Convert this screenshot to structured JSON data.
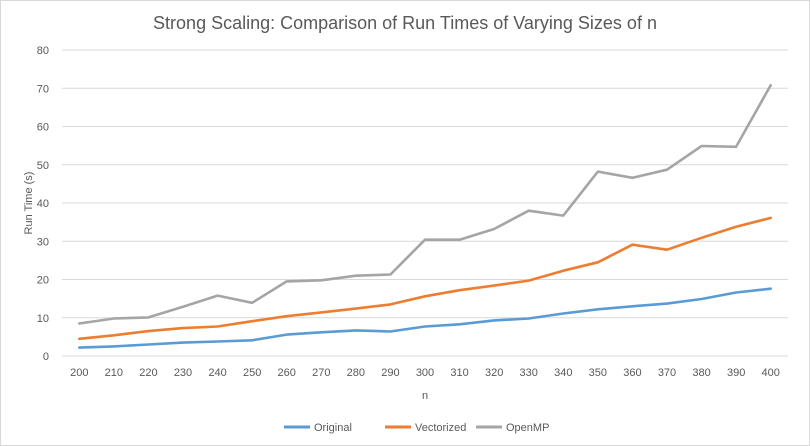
{
  "chart_data": {
    "type": "line",
    "title": "Strong Scaling: Comparison of Run Times of Varying Sizes of n",
    "xlabel": "n",
    "ylabel": "Run Time (s)",
    "ylim": [
      0,
      80
    ],
    "yticks": [
      0,
      10,
      20,
      30,
      40,
      50,
      60,
      70,
      80
    ],
    "grid": true,
    "legend": "bottom",
    "x": [
      200,
      210,
      220,
      230,
      240,
      250,
      260,
      270,
      280,
      290,
      300,
      310,
      320,
      330,
      340,
      350,
      360,
      370,
      380,
      390,
      400
    ],
    "series": [
      {
        "name": "Original",
        "color": "#5b9bd5",
        "values": [
          2.2,
          2.5,
          3.0,
          3.5,
          3.8,
          4.1,
          5.6,
          6.2,
          6.7,
          6.4,
          7.7,
          8.3,
          9.3,
          9.8,
          11.1,
          12.2,
          13.0,
          13.7,
          14.9,
          16.6,
          17.6
        ]
      },
      {
        "name": "Vectorized",
        "color": "#ed7d31",
        "values": [
          4.5,
          5.4,
          6.5,
          7.3,
          7.7,
          9.1,
          10.4,
          11.4,
          12.4,
          13.5,
          15.6,
          17.2,
          18.4,
          19.7,
          22.3,
          24.5,
          29.1,
          27.8,
          30.9,
          33.8,
          36.1
        ]
      },
      {
        "name": "OpenMP",
        "color": "#a5a5a5",
        "values": [
          8.5,
          9.8,
          10.1,
          12.9,
          15.8,
          13.9,
          19.5,
          19.8,
          21.0,
          21.3,
          30.4,
          30.4,
          33.2,
          38.0,
          36.7,
          48.2,
          46.6,
          48.7,
          54.9,
          54.7,
          70.8
        ]
      }
    ]
  }
}
